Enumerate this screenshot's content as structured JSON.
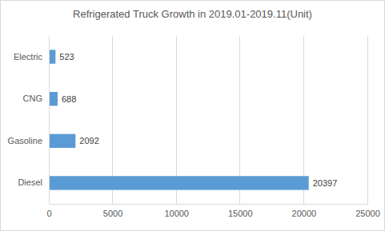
{
  "chart_data": {
    "type": "bar",
    "title": "Refrigerated Truck Growth in 2019.01-2019.11(Unit)",
    "orientation": "horizontal",
    "categories": [
      "Electric",
      "CNG",
      "Gasoline",
      "Diesel"
    ],
    "values": [
      523,
      688,
      2092,
      20397
    ],
    "color": "#5b9bd5",
    "xlim": [
      0,
      25000
    ],
    "xticks": [
      0,
      5000,
      10000,
      15000,
      20000,
      25000
    ],
    "grid": true,
    "data_labels": true
  }
}
